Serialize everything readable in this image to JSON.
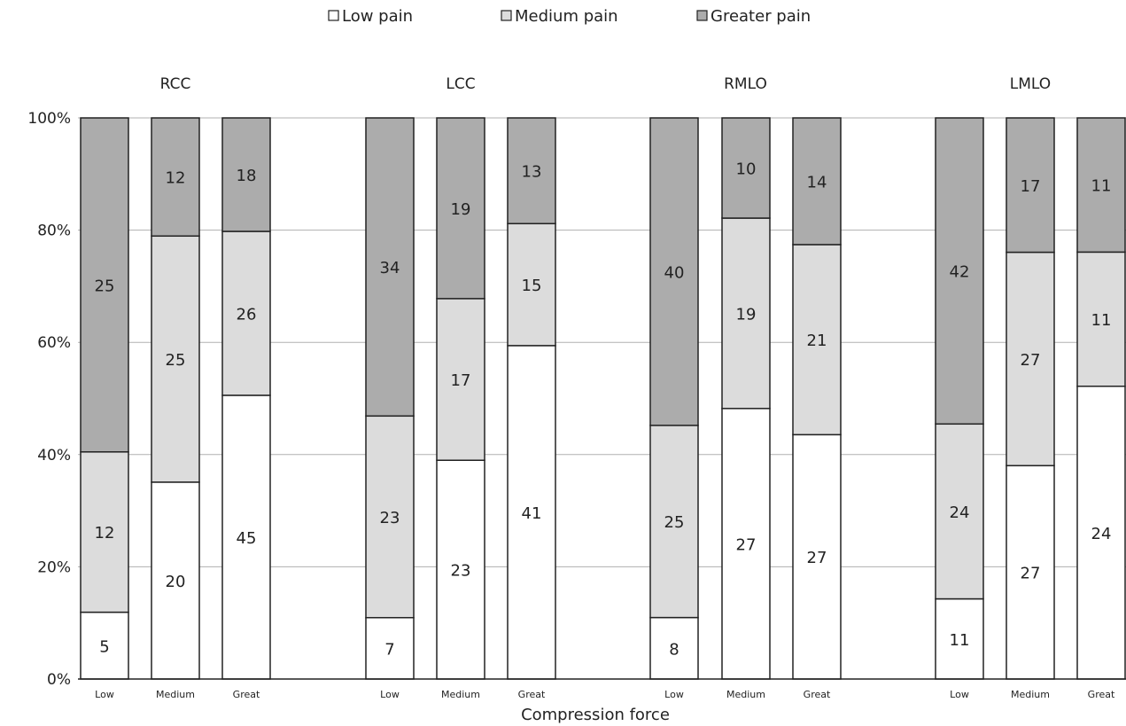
{
  "chart_data": {
    "type": "bar",
    "stacked": "percent",
    "xlabel": "Compression force",
    "ylim": [
      0,
      100
    ],
    "yticks": [
      "0%",
      "20%",
      "40%",
      "60%",
      "80%",
      "100%"
    ],
    "grid": true,
    "legend_position": "top",
    "series": [
      {
        "name": "Low pain",
        "color": "#ffffff"
      },
      {
        "name": "Medium pain",
        "color": "#dcdcdc"
      },
      {
        "name": "Greater pain",
        "color": "#acacac"
      }
    ],
    "categories": [
      "Low",
      "Medium",
      "Great"
    ],
    "panels": [
      {
        "title": "RCC",
        "values": [
          [
            5,
            12,
            25
          ],
          [
            20,
            25,
            12
          ],
          [
            45,
            26,
            18
          ]
        ]
      },
      {
        "title": "LCC",
        "values": [
          [
            7,
            23,
            34
          ],
          [
            23,
            17,
            19
          ],
          [
            41,
            15,
            13
          ]
        ]
      },
      {
        "title": "RMLO",
        "values": [
          [
            8,
            25,
            40
          ],
          [
            27,
            19,
            10
          ],
          [
            27,
            21,
            14
          ]
        ]
      },
      {
        "title": "LMLO",
        "values": [
          [
            11,
            24,
            42
          ],
          [
            27,
            27,
            17
          ],
          [
            24,
            11,
            11
          ]
        ]
      }
    ]
  }
}
